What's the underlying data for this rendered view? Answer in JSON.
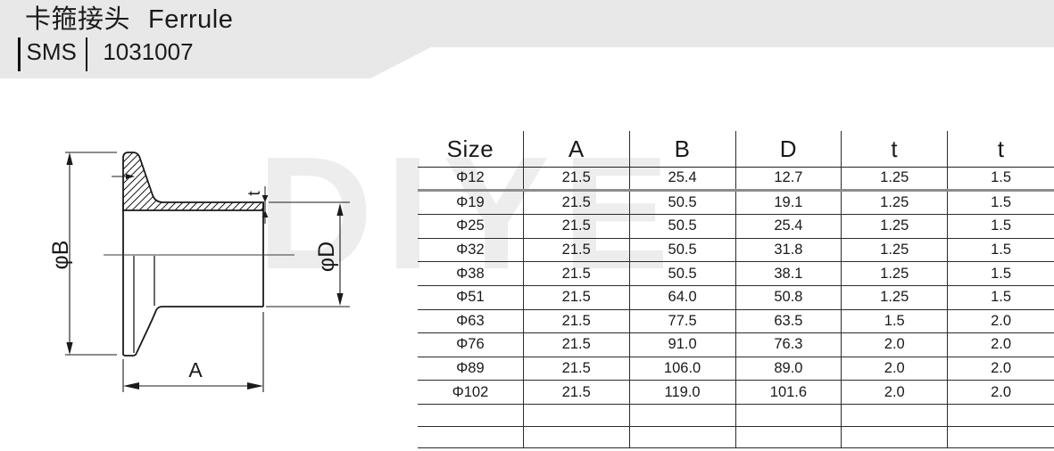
{
  "header": {
    "title_cn": "卡箍接头",
    "title_en": "Ferrule",
    "standard": "SMS",
    "code": "1031007"
  },
  "watermark": {
    "text": "DIYE"
  },
  "drawing": {
    "labels": {
      "flange_diameter": "φB",
      "tube_diameter": "φD",
      "wall_thickness": "t",
      "length": "A"
    }
  },
  "table": {
    "columns": [
      "Size",
      "A",
      "B",
      "D",
      "t",
      "t"
    ],
    "rows": [
      [
        "Φ12",
        "21.5",
        "25.4",
        "12.7",
        "1.25",
        "1.5"
      ],
      [
        "Φ19",
        "21.5",
        "50.5",
        "19.1",
        "1.25",
        "1.5"
      ],
      [
        "Φ25",
        "21.5",
        "50.5",
        "25.4",
        "1.25",
        "1.5"
      ],
      [
        "Φ32",
        "21.5",
        "50.5",
        "31.8",
        "1.25",
        "1.5"
      ],
      [
        "Φ38",
        "21.5",
        "50.5",
        "38.1",
        "1.25",
        "1.5"
      ],
      [
        "Φ51",
        "21.5",
        "64.0",
        "50.8",
        "1.25",
        "1.5"
      ],
      [
        "Φ63",
        "21.5",
        "77.5",
        "63.5",
        "1.5",
        "2.0"
      ],
      [
        "Φ76",
        "21.5",
        "91.0",
        "76.3",
        "2.0",
        "2.0"
      ],
      [
        "Φ89",
        "21.5",
        "106.0",
        "89.0",
        "2.0",
        "2.0"
      ],
      [
        "Φ102",
        "21.5",
        "119.0",
        "101.6",
        "2.0",
        "2.0"
      ]
    ],
    "empty_row_count": 2
  },
  "colors": {
    "banner": "#e8e8e8",
    "line": "#1a1a1a",
    "thick_rule": "#8c8c8c",
    "watermark": "#ededed"
  }
}
